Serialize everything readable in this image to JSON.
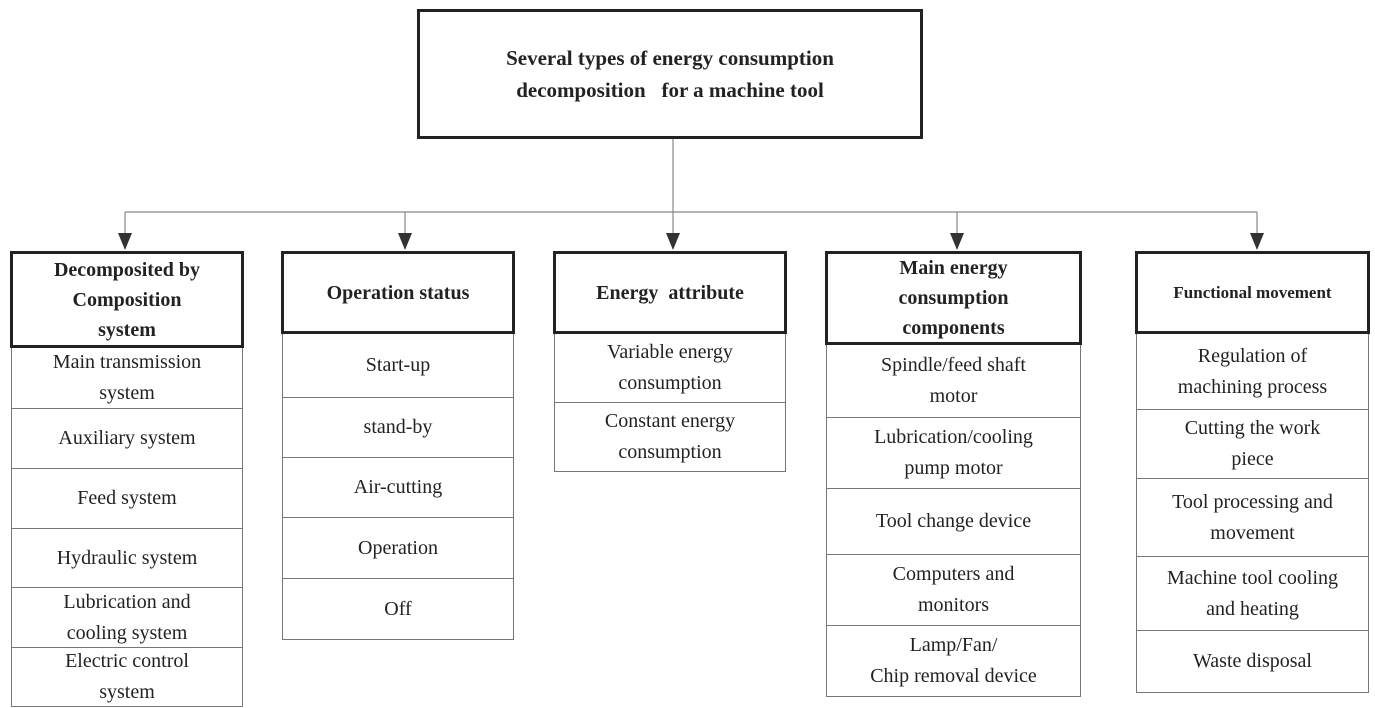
{
  "root": {
    "title_lines": [
      "Several types of energy consumption",
      "decomposition   for a machine tool"
    ]
  },
  "columns": [
    {
      "header_lines": [
        "Decomposited by",
        "Composition",
        "system"
      ],
      "items": [
        [
          "Main transmission",
          "system"
        ],
        [
          "Auxiliary system"
        ],
        [
          "Feed system"
        ],
        [
          "Hydraulic system"
        ],
        [
          "Lubrication and",
          "cooling system"
        ],
        [
          "Electric control",
          "system"
        ]
      ]
    },
    {
      "header_lines": [
        "Operation status"
      ],
      "items": [
        [
          "Start-up"
        ],
        [
          "stand-by"
        ],
        [
          "Air-cutting"
        ],
        [
          "Operation"
        ],
        [
          "Off"
        ]
      ]
    },
    {
      "header_lines": [
        "Energy  attribute"
      ],
      "items": [
        [
          "Variable energy",
          "consumption"
        ],
        [
          "Constant energy",
          "consumption"
        ]
      ]
    },
    {
      "header_lines": [
        "Main energy",
        "consumption",
        "components"
      ],
      "items": [
        [
          "Spindle/feed shaft",
          "motor"
        ],
        [
          "Lubrication/cooling",
          "pump motor"
        ],
        [
          "Tool change device"
        ],
        [
          "Computers and",
          "monitors"
        ],
        [
          "Lamp/Fan/",
          "Chip removal device"
        ]
      ]
    },
    {
      "header_lines": [
        "Functional movement"
      ],
      "items": [
        [
          "Regulation of",
          "machining process"
        ],
        [
          "Cutting the work",
          "piece"
        ],
        [
          "Tool processing and",
          "movement"
        ],
        [
          "Machine tool cooling",
          "and heating"
        ],
        [
          "Waste disposal"
        ]
      ]
    }
  ]
}
